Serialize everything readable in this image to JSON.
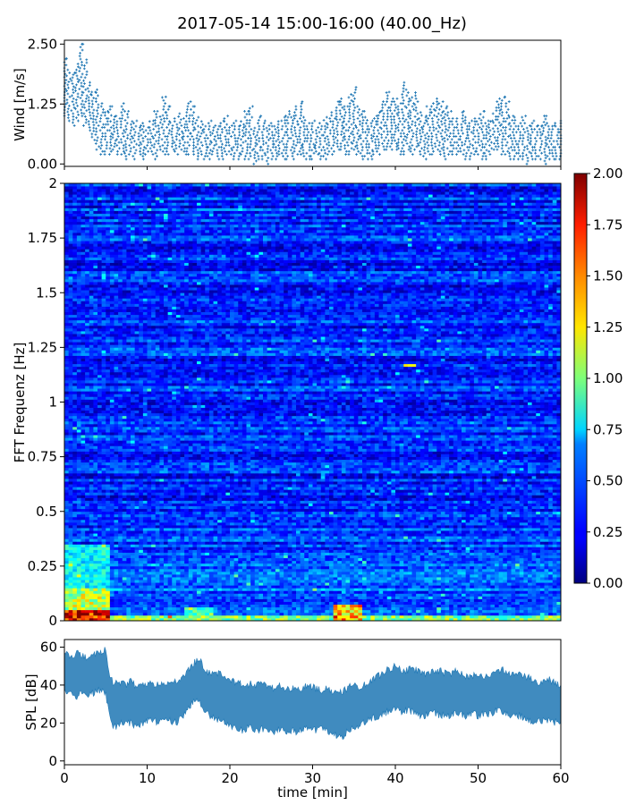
{
  "figure": {
    "title": "2017-05-14 15:00-16:00 (40.00_Hz)"
  },
  "chart_data": [
    {
      "type": "scatter",
      "panel": "wind",
      "title": "",
      "xlabel": "",
      "ylabel": "Wind [m/s]",
      "xlim": [
        0,
        60
      ],
      "ylim": [
        -0.05,
        2.58
      ],
      "yticks": [
        0.0,
        1.25,
        2.5
      ],
      "ytick_labels": [
        "0.00",
        "1.25",
        "2.50"
      ],
      "xticks": [
        0,
        10,
        20,
        30,
        40,
        50,
        60
      ],
      "marker": "+",
      "series": [
        {
          "color": "#1f77b4",
          "x": [
            0.0,
            0.5,
            1.0,
            1.5,
            2.0,
            2.5,
            3.0,
            3.5,
            4.0,
            4.5,
            5.0,
            5.5,
            6.0,
            6.5,
            7.0,
            7.5,
            8.0,
            8.5,
            9.0,
            9.5,
            10.0,
            10.5,
            11.0,
            11.5,
            12.0,
            12.5,
            13.0,
            13.5,
            14.0,
            14.5,
            15.0,
            15.5,
            16.0,
            16.5,
            17.0,
            17.5,
            18.0,
            18.5,
            19.0,
            19.5,
            20.0,
            20.5,
            21.0,
            21.5,
            22.0,
            22.5,
            23.0,
            23.5,
            24.0,
            24.5,
            25.0,
            25.5,
            26.0,
            26.5,
            27.0,
            27.5,
            28.0,
            28.5,
            29.0,
            29.5,
            30.0,
            30.5,
            31.0,
            31.5,
            32.0,
            32.5,
            33.0,
            33.5,
            34.0,
            34.5,
            35.0,
            35.5,
            36.0,
            36.5,
            37.0,
            37.5,
            38.0,
            38.5,
            39.0,
            39.5,
            40.0,
            40.5,
            41.0,
            41.5,
            42.0,
            42.5,
            43.0,
            43.5,
            44.0,
            44.5,
            45.0,
            45.5,
            46.0,
            46.5,
            47.0,
            47.5,
            48.0,
            48.5,
            49.0,
            49.5,
            50.0,
            50.5,
            51.0,
            51.5,
            52.0,
            52.5,
            53.0,
            53.5,
            54.0,
            54.5,
            55.0,
            55.5,
            56.0,
            56.5,
            57.0,
            57.5,
            58.0,
            58.5,
            59.0,
            59.5,
            60.0
          ],
          "y_max": [
            2.2,
            2.0,
            1.9,
            2.1,
            2.5,
            2.2,
            1.7,
            1.5,
            1.6,
            1.3,
            1.1,
            1.2,
            1.0,
            1.0,
            1.3,
            1.1,
            0.9,
            0.9,
            0.8,
            0.9,
            0.8,
            0.9,
            1.1,
            1.0,
            1.4,
            1.2,
            0.9,
            1.0,
            1.1,
            1.0,
            1.3,
            1.2,
            1.0,
            0.9,
            0.8,
            0.9,
            0.8,
            0.8,
            0.9,
            1.0,
            0.8,
            0.9,
            0.8,
            0.9,
            1.1,
            1.2,
            0.8,
            1.0,
            0.9,
            0.8,
            0.9,
            0.8,
            0.9,
            1.0,
            1.1,
            1.0,
            1.2,
            1.3,
            1.0,
            0.9,
            0.9,
            0.8,
            0.9,
            1.0,
            1.0,
            1.1,
            1.3,
            1.4,
            1.2,
            1.5,
            1.6,
            1.2,
            1.1,
            1.0,
            0.9,
            1.0,
            1.1,
            1.3,
            1.5,
            1.4,
            1.4,
            1.3,
            1.7,
            1.6,
            1.4,
            1.5,
            1.1,
            1.0,
            1.2,
            1.3,
            1.4,
            1.3,
            1.2,
            1.1,
            1.0,
            1.0,
            1.1,
            1.0,
            0.9,
            1.0,
            1.0,
            1.1,
            0.9,
            0.9,
            1.2,
            1.4,
            1.4,
            1.3,
            1.0,
            1.0,
            0.9,
            1.0,
            0.8,
            0.9,
            0.8,
            0.8,
            1.0,
            0.9,
            0.8,
            0.9,
            0.9
          ],
          "y_min": [
            1.0,
            0.9,
            0.8,
            0.9,
            1.0,
            0.8,
            0.7,
            0.5,
            0.3,
            0.2,
            0.2,
            0.2,
            0.3,
            0.2,
            0.2,
            0.1,
            0.2,
            0.1,
            0.2,
            0.1,
            0.2,
            0.2,
            0.1,
            0.3,
            0.2,
            0.2,
            0.3,
            0.2,
            0.3,
            0.2,
            0.2,
            0.2,
            0.1,
            0.2,
            0.1,
            0.1,
            0.2,
            0.1,
            0.1,
            0.2,
            0.2,
            0.1,
            0.1,
            0.2,
            0.1,
            0.1,
            0.0,
            0.1,
            0.1,
            0.0,
            0.1,
            0.1,
            0.2,
            0.1,
            0.1,
            0.1,
            0.2,
            0.2,
            0.1,
            0.1,
            0.1,
            0.2,
            0.1,
            0.1,
            0.2,
            0.2,
            0.3,
            0.3,
            0.2,
            0.2,
            0.3,
            0.2,
            0.1,
            0.1,
            0.1,
            0.2,
            0.2,
            0.3,
            0.3,
            0.3,
            0.3,
            0.2,
            0.2,
            0.3,
            0.2,
            0.3,
            0.2,
            0.1,
            0.2,
            0.2,
            0.3,
            0.2,
            0.1,
            0.2,
            0.2,
            0.2,
            0.2,
            0.1,
            0.1,
            0.2,
            0.2,
            0.1,
            0.1,
            0.2,
            0.3,
            0.3,
            0.2,
            0.2,
            0.1,
            0.1,
            0.1,
            0.1,
            0.0,
            0.1,
            0.1,
            0.1,
            0.0,
            0.1,
            0.1,
            0.1,
            0.1
          ]
        }
      ]
    },
    {
      "type": "heatmap",
      "panel": "spectrogram",
      "title": "",
      "xlabel": "",
      "ylabel": "FFT Frequenz [Hz]",
      "xlim": [
        0,
        60
      ],
      "ylim": [
        0,
        2
      ],
      "yticks": [
        0,
        0.25,
        0.5,
        0.75,
        1,
        1.25,
        1.5,
        1.75,
        2
      ],
      "ytick_labels": [
        "0",
        "0.25",
        "0.5",
        "0.75",
        "1",
        "1.25",
        "1.5",
        "1.75",
        "2"
      ],
      "colormap": "jet",
      "colorbar": {
        "range": [
          0.0,
          2.0
        ],
        "ticks": [
          "0.00",
          "0.25",
          "0.50",
          "0.75",
          "1.00",
          "1.25",
          "1.50",
          "1.75",
          "2.00"
        ]
      },
      "time_bins": 120,
      "frequency_bins": 160,
      "background_level": 0.32,
      "features": [
        {
          "freq": [
            0.0,
            0.05
          ],
          "time": [
            0,
            5.5
          ],
          "level": 1.9
        },
        {
          "freq": [
            0.05,
            0.15
          ],
          "time": [
            0,
            5.5
          ],
          "level": 1.2
        },
        {
          "freq": [
            0.15,
            0.35
          ],
          "time": [
            0,
            5.5
          ],
          "level": 0.8
        },
        {
          "freq": [
            0.0,
            0.03
          ],
          "time": [
            5.5,
            60
          ],
          "level": 1.1
        },
        {
          "freq": [
            0.0,
            0.08
          ],
          "time": [
            32.5,
            36
          ],
          "level": 1.5
        },
        {
          "freq": [
            0.0,
            0.06
          ],
          "time": [
            14.5,
            18
          ],
          "level": 1.0
        },
        {
          "freq": [
            1.16,
            1.18
          ],
          "time": [
            41,
            42.5
          ],
          "level": 1.5
        }
      ]
    },
    {
      "type": "line",
      "panel": "spl",
      "title": "",
      "xlabel": "time [min]",
      "ylabel": "SPL [dB]",
      "xlim": [
        0,
        60
      ],
      "ylim": [
        -2,
        64
      ],
      "yticks": [
        0,
        20,
        40,
        60
      ],
      "ytick_labels": [
        "0",
        "20",
        "40",
        "60"
      ],
      "xticks": [
        0,
        10,
        20,
        30,
        40,
        50,
        60
      ],
      "xtick_labels": [
        "0",
        "10",
        "20",
        "30",
        "40",
        "50",
        "60"
      ],
      "series": [
        {
          "color": "#1f77b4",
          "x": [
            0.0,
            0.5,
            1.0,
            1.5,
            2.0,
            2.5,
            3.0,
            3.5,
            4.0,
            4.5,
            5.0,
            5.5,
            6.0,
            6.5,
            7.0,
            7.5,
            8.0,
            8.5,
            9.0,
            9.5,
            10.0,
            10.5,
            11.0,
            11.5,
            12.0,
            12.5,
            13.0,
            13.5,
            14.0,
            14.5,
            15.0,
            15.5,
            16.0,
            16.5,
            17.0,
            17.5,
            18.0,
            18.5,
            19.0,
            19.5,
            20.0,
            20.5,
            21.0,
            21.5,
            22.0,
            22.5,
            23.0,
            23.5,
            24.0,
            24.5,
            25.0,
            25.5,
            26.0,
            26.5,
            27.0,
            27.5,
            28.0,
            28.5,
            29.0,
            29.5,
            30.0,
            30.5,
            31.0,
            31.5,
            32.0,
            32.5,
            33.0,
            33.5,
            34.0,
            34.5,
            35.0,
            35.5,
            36.0,
            36.5,
            37.0,
            37.5,
            38.0,
            38.5,
            39.0,
            39.5,
            40.0,
            40.5,
            41.0,
            41.5,
            42.0,
            42.5,
            43.0,
            43.5,
            44.0,
            44.5,
            45.0,
            45.5,
            46.0,
            46.5,
            47.0,
            47.5,
            48.0,
            48.5,
            49.0,
            49.5,
            50.0,
            50.5,
            51.0,
            51.5,
            52.0,
            52.5,
            53.0,
            53.5,
            54.0,
            54.5,
            55.0,
            55.5,
            56.0,
            56.5,
            57.0,
            57.5,
            58.0,
            58.5,
            59.0,
            59.5,
            60.0
          ],
          "y_max": [
            58,
            56,
            55,
            57,
            56,
            55,
            54,
            56,
            57,
            58,
            59,
            44,
            40,
            42,
            41,
            40,
            42,
            40,
            39,
            41,
            40,
            41,
            40,
            41,
            42,
            40,
            41,
            42,
            43,
            44,
            48,
            51,
            53,
            52,
            47,
            46,
            47,
            46,
            45,
            44,
            43,
            42,
            42,
            40,
            39,
            41,
            40,
            41,
            40,
            40,
            39,
            38,
            40,
            38,
            39,
            38,
            37,
            38,
            39,
            40,
            39,
            38,
            37,
            38,
            37,
            36,
            37,
            36,
            38,
            39,
            40,
            39,
            40,
            41,
            42,
            43,
            45,
            46,
            48,
            49,
            50,
            49,
            47,
            48,
            49,
            48,
            47,
            46,
            46,
            47,
            47,
            48,
            46,
            45,
            47,
            47,
            46,
            45,
            44,
            45,
            46,
            45,
            44,
            45,
            46,
            47,
            48,
            47,
            46,
            45,
            46,
            45,
            44,
            43,
            42,
            41,
            42,
            43,
            42,
            41,
            40
          ],
          "y_min": [
            38,
            36,
            35,
            34,
            36,
            37,
            35,
            36,
            37,
            38,
            36,
            22,
            18,
            19,
            20,
            21,
            20,
            19,
            18,
            20,
            21,
            22,
            21,
            20,
            21,
            22,
            21,
            20,
            22,
            24,
            28,
            31,
            32,
            30,
            27,
            24,
            23,
            22,
            21,
            20,
            19,
            18,
            17,
            16,
            17,
            18,
            17,
            16,
            17,
            16,
            15,
            16,
            17,
            16,
            15,
            16,
            15,
            16,
            17,
            18,
            17,
            16,
            17,
            16,
            15,
            14,
            13,
            12,
            15,
            17,
            18,
            19,
            20,
            21,
            22,
            23,
            24,
            25,
            26,
            27,
            27,
            26,
            26,
            27,
            26,
            25,
            24,
            24,
            25,
            26,
            25,
            24,
            25,
            24,
            25,
            26,
            25,
            24,
            24,
            25,
            24,
            25,
            24,
            25,
            26,
            27,
            26,
            25,
            24,
            23,
            24,
            23,
            22,
            21,
            20,
            21,
            22,
            21,
            20,
            21,
            21
          ]
        }
      ]
    }
  ]
}
